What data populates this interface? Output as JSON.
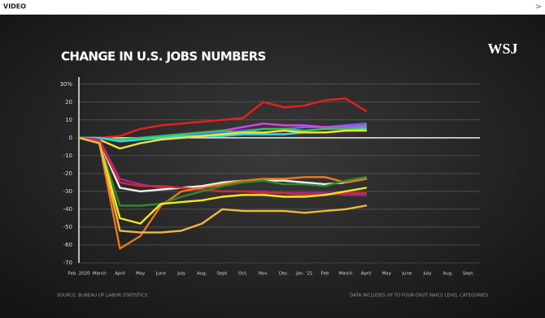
{
  "header": {
    "label": "VIDEO",
    "chevron": ">"
  },
  "chart_data": {
    "type": "line",
    "title": "CHANGE IN U.S. JOBS NUMBERS",
    "logo": "WSJ",
    "source": "SOURCE: BUREAU OF LABOR STATISTICS",
    "note": "DATA INCLUDES UP TO FOUR-DIGIT NAICS LEVEL CATEGORIES",
    "categories": [
      "Feb. 2020",
      "March",
      "April",
      "May",
      "June",
      "July",
      "Aug.",
      "Sept.",
      "Oct.",
      "Nov.",
      "Dec.",
      "Jan. '21",
      "Feb",
      "March",
      "April",
      "May",
      "June",
      "July",
      "Aug.",
      "Sept."
    ],
    "ylim": [
      -70,
      34
    ],
    "yticks": [
      {
        "value": 30,
        "label": "30%"
      },
      20,
      10,
      0,
      -10,
      -20,
      -30,
      -40,
      -50,
      -60,
      -70
    ],
    "grid": true,
    "series": [
      {
        "color": "#e8201c",
        "values": [
          0,
          0,
          1,
          5,
          7,
          8,
          9,
          10,
          11,
          20,
          17,
          18,
          21,
          22,
          15,
          null,
          null,
          null,
          null,
          null
        ]
      },
      {
        "color": "#3d7ff0",
        "values": [
          0,
          0,
          -2,
          -1,
          0,
          1,
          2,
          3,
          4,
          5,
          5,
          6,
          6,
          7,
          8,
          null,
          null,
          null,
          null,
          null
        ]
      },
      {
        "color": "#e040e8",
        "values": [
          0,
          0,
          -1,
          0,
          1,
          2,
          3,
          4,
          6,
          8,
          7,
          7,
          6,
          6,
          7,
          null,
          null,
          null,
          null,
          null
        ]
      },
      {
        "color": "#34c84a",
        "values": [
          0,
          0,
          -1,
          0,
          1,
          2,
          3,
          4,
          3,
          5,
          5,
          4,
          5,
          5,
          6,
          null,
          null,
          null,
          null,
          null
        ]
      },
      {
        "color": "#30d8e0",
        "values": [
          0,
          0,
          -2,
          -1,
          0,
          1,
          1,
          1,
          2,
          2,
          2,
          3,
          3,
          4,
          5,
          null,
          null,
          null,
          null,
          null
        ]
      },
      {
        "color": "#f2e23a",
        "values": [
          0,
          -1,
          -6,
          -3,
          -1,
          0,
          1,
          2,
          3,
          3,
          4,
          3,
          3,
          4,
          4,
          null,
          null,
          null,
          null,
          null
        ]
      },
      {
        "color": "#a8259a",
        "values": [
          0,
          -1,
          -23,
          -26,
          -28,
          -28,
          -29,
          -30,
          -30,
          -30,
          -31,
          -31,
          -31,
          -32,
          -32,
          null,
          null,
          null,
          null,
          null
        ]
      },
      {
        "color": "#f2f2f2",
        "values": [
          0,
          -2,
          -28,
          -30,
          -29,
          -28,
          -27,
          -25,
          -24,
          -24,
          -24,
          -25,
          -26,
          -25,
          -23,
          null,
          null,
          null,
          null,
          null
        ]
      },
      {
        "color": "#d42a2a",
        "values": [
          0,
          -2,
          -25,
          -27,
          -27,
          -28,
          -29,
          -30,
          -30,
          -31,
          -31,
          -32,
          -32,
          -31,
          -31,
          null,
          null,
          null,
          null,
          null
        ]
      },
      {
        "color": "#f07818",
        "values": [
          0,
          -3,
          -62,
          -55,
          -38,
          -30,
          -28,
          -26,
          -24,
          -23,
          -23,
          -22,
          -22,
          -25,
          -23,
          null,
          null,
          null,
          null,
          null
        ]
      },
      {
        "color": "#2f8a2f",
        "values": [
          0,
          -3,
          -38,
          -38,
          -37,
          -33,
          -30,
          -27,
          -25,
          -24,
          -26,
          -26,
          -27,
          -24,
          -22,
          null,
          null,
          null,
          null,
          null
        ]
      },
      {
        "color": "#f6e81c",
        "values": [
          0,
          -3,
          -45,
          -48,
          -37,
          -36,
          -35,
          -33,
          -32,
          -32,
          -33,
          -33,
          -32,
          -30,
          -28,
          null,
          null,
          null,
          null,
          null
        ]
      },
      {
        "color": "#f0b840",
        "values": [
          0,
          -3,
          -52,
          -53,
          -53,
          -52,
          -48,
          -40,
          -41,
          -41,
          -41,
          -42,
          -41,
          -40,
          -38,
          null,
          null,
          null,
          null,
          null
        ]
      }
    ]
  }
}
